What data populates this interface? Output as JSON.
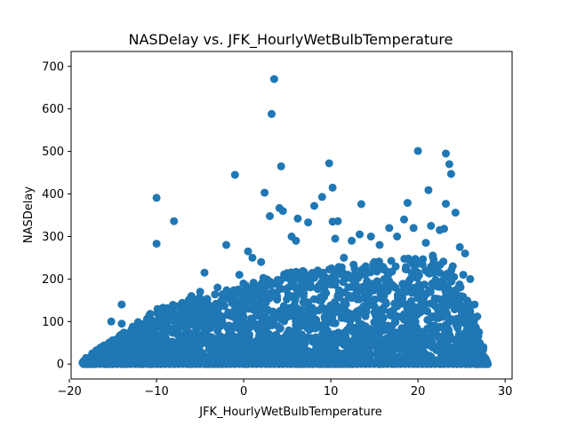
{
  "chart_data": {
    "type": "scatter",
    "title": "NASDelay vs. JFK_HourlyWetBulbTemperature",
    "xlabel": "JFK_HourlyWetBulbTemperature",
    "ylabel": "NASDelay",
    "xlim": [
      -19.8,
      30.8
    ],
    "ylim": [
      -35,
      735
    ],
    "xticks": [
      -20,
      -10,
      0,
      10,
      20,
      30
    ],
    "yticks": [
      0,
      100,
      200,
      300,
      400,
      500,
      600,
      700
    ],
    "grid": false,
    "legend": "none",
    "point_color": "#1f77b4",
    "series": [
      {
        "x": [
          3.5,
          3.2,
          20,
          23.2,
          23.6,
          23.8,
          9.8,
          4.3,
          -1,
          21.2,
          10.2,
          2.4,
          9.0,
          -10.0,
          13.5,
          23.2,
          18.8,
          4.1,
          4.5,
          8.1,
          24.3,
          7.4,
          18.4,
          10.2,
          10.8,
          3.0,
          6.2,
          13.3,
          16.7,
          17.6,
          19.5,
          21.5,
          22.5,
          23.0,
          12.4,
          10.5,
          14.6,
          20.9,
          24.8,
          25.4,
          15.6,
          -8.0,
          -2.0,
          0.5,
          1.0,
          -10.0,
          5.5,
          6.0,
          11.5,
          15.0,
          25.2,
          26.0,
          24.0,
          19.0,
          8.5,
          12.0,
          14.0,
          2.0,
          -0.5,
          -4.5,
          26.5,
          26.8,
          27.0,
          27.5,
          28.0,
          -18.0,
          -17.0,
          -16.0,
          -15.0,
          -13.0,
          -12.0,
          -11.0,
          -9.0,
          -7.0,
          -6.0,
          -5.0,
          -3.0,
          -14.0,
          -15.2,
          -14.0
        ],
        "y": [
          670,
          588,
          501,
          495,
          470,
          447,
          472,
          465,
          445,
          409,
          415,
          403,
          393,
          391,
          376,
          377,
          379,
          367,
          360,
          372,
          356,
          333,
          340,
          335,
          336,
          348,
          342,
          305,
          320,
          300,
          320,
          325,
          315,
          318,
          290,
          295,
          300,
          285,
          275,
          260,
          280,
          336,
          280,
          265,
          250,
          283,
          300,
          290,
          250,
          240,
          210,
          200,
          230,
          245,
          220,
          210,
          230,
          240,
          210,
          215,
          140,
          112,
          75,
          40,
          0,
          0,
          10,
          20,
          30,
          60,
          80,
          100,
          130,
          140,
          160,
          170,
          180,
          95,
          100,
          140
        ]
      }
    ]
  }
}
